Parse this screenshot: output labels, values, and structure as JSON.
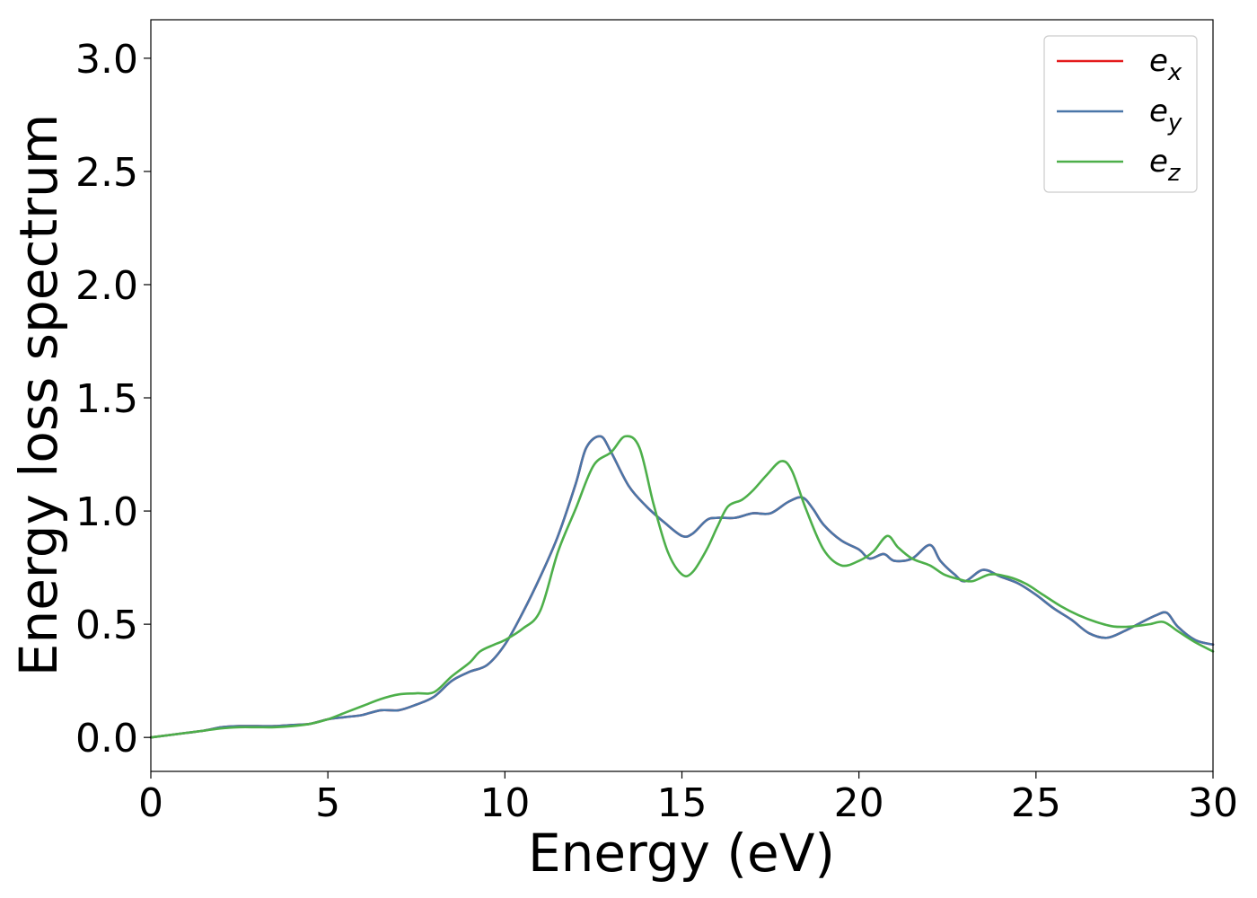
{
  "chart_data": {
    "type": "line",
    "xlabel": "Energy (eV)",
    "ylabel": "Energy loss spectrum",
    "xlim": [
      0,
      30
    ],
    "ylim": [
      -0.15,
      3.17
    ],
    "xticks": [
      0,
      5,
      10,
      15,
      20,
      25,
      30
    ],
    "xtick_labels": [
      "0",
      "5",
      "10",
      "15",
      "20",
      "25",
      "30"
    ],
    "yticks": [
      0.0,
      0.5,
      1.0,
      1.5,
      2.0,
      2.5,
      3.0
    ],
    "ytick_labels": [
      "0.0",
      "0.5",
      "1.0",
      "1.5",
      "2.0",
      "2.5",
      "3.0"
    ],
    "grid": false,
    "legend": {
      "position": "top-right"
    },
    "series": [
      {
        "name_base": "e",
        "name_sub": "x",
        "color": "#e41a1c",
        "x": [
          0,
          1,
          1.5,
          2,
          2.5,
          3,
          3.5,
          4,
          4.5,
          5,
          5.5,
          5.8,
          6,
          6.5,
          7,
          7.5,
          8,
          8.5,
          9,
          9.5,
          10,
          10.5,
          11,
          11.5,
          12,
          12.3,
          12.7,
          13,
          13.5,
          14,
          14.5,
          15,
          15.3,
          15.7,
          16,
          16.5,
          17,
          17.5,
          18,
          18.4,
          18.7,
          19,
          19.5,
          20,
          20.3,
          20.7,
          21,
          21.5,
          22,
          22.3,
          22.7,
          23,
          23.5,
          24,
          24.5,
          25,
          25.5,
          26,
          26.5,
          27,
          27.5,
          28,
          28.4,
          28.7,
          29,
          29.5,
          30
        ],
        "y": [
          0,
          0.02,
          0.03,
          0.045,
          0.05,
          0.05,
          0.05,
          0.055,
          0.06,
          0.08,
          0.09,
          0.095,
          0.1,
          0.12,
          0.12,
          0.145,
          0.18,
          0.25,
          0.29,
          0.32,
          0.41,
          0.55,
          0.71,
          0.89,
          1.12,
          1.28,
          1.33,
          1.26,
          1.11,
          1.02,
          0.95,
          0.89,
          0.9,
          0.96,
          0.97,
          0.97,
          0.99,
          0.99,
          1.04,
          1.06,
          1.01,
          0.94,
          0.87,
          0.83,
          0.79,
          0.81,
          0.78,
          0.79,
          0.85,
          0.78,
          0.72,
          0.69,
          0.74,
          0.71,
          0.68,
          0.63,
          0.57,
          0.52,
          0.46,
          0.44,
          0.47,
          0.51,
          0.54,
          0.55,
          0.49,
          0.43,
          0.41
        ]
      },
      {
        "name_base": "e",
        "name_sub": "y",
        "color": "#4a76a8",
        "x": [
          0,
          1,
          1.5,
          2,
          2.5,
          3,
          3.5,
          4,
          4.5,
          5,
          5.5,
          5.8,
          6,
          6.5,
          7,
          7.5,
          8,
          8.5,
          9,
          9.5,
          10,
          10.5,
          11,
          11.5,
          12,
          12.3,
          12.7,
          13,
          13.5,
          14,
          14.5,
          15,
          15.3,
          15.7,
          16,
          16.5,
          17,
          17.5,
          18,
          18.4,
          18.7,
          19,
          19.5,
          20,
          20.3,
          20.7,
          21,
          21.5,
          22,
          22.3,
          22.7,
          23,
          23.5,
          24,
          24.5,
          25,
          25.5,
          26,
          26.5,
          27,
          27.5,
          28,
          28.4,
          28.7,
          29,
          29.5,
          30
        ],
        "y": [
          0,
          0.02,
          0.03,
          0.045,
          0.05,
          0.05,
          0.05,
          0.055,
          0.06,
          0.08,
          0.09,
          0.095,
          0.1,
          0.12,
          0.12,
          0.145,
          0.18,
          0.25,
          0.29,
          0.32,
          0.41,
          0.55,
          0.71,
          0.89,
          1.12,
          1.28,
          1.33,
          1.26,
          1.11,
          1.02,
          0.95,
          0.89,
          0.9,
          0.96,
          0.97,
          0.97,
          0.99,
          0.99,
          1.04,
          1.06,
          1.01,
          0.94,
          0.87,
          0.83,
          0.79,
          0.81,
          0.78,
          0.79,
          0.85,
          0.78,
          0.72,
          0.69,
          0.74,
          0.71,
          0.68,
          0.63,
          0.57,
          0.52,
          0.46,
          0.44,
          0.47,
          0.51,
          0.54,
          0.55,
          0.49,
          0.43,
          0.41
        ]
      },
      {
        "name_base": "e",
        "name_sub": "z",
        "color": "#4daf4a",
        "x": [
          0,
          1,
          1.5,
          2,
          2.5,
          3,
          3.5,
          4,
          4.5,
          5,
          5.5,
          6,
          6.5,
          7,
          7.5,
          8,
          8.5,
          9,
          9.3,
          9.7,
          10,
          10.5,
          11,
          11.5,
          12,
          12.5,
          13,
          13.4,
          13.8,
          14.2,
          14.6,
          15,
          15.3,
          15.7,
          16,
          16.3,
          16.7,
          17,
          17.4,
          17.8,
          18.1,
          18.5,
          19,
          19.5,
          20,
          20.4,
          20.8,
          21.1,
          21.5,
          22,
          22.4,
          22.8,
          23.2,
          23.7,
          24.2,
          24.7,
          25.2,
          25.7,
          26.2,
          26.7,
          27.2,
          27.7,
          28.2,
          28.6,
          29,
          29.5,
          30
        ],
        "y": [
          0,
          0.02,
          0.03,
          0.04,
          0.045,
          0.045,
          0.045,
          0.05,
          0.06,
          0.08,
          0.11,
          0.14,
          0.17,
          0.19,
          0.195,
          0.2,
          0.27,
          0.33,
          0.38,
          0.41,
          0.43,
          0.48,
          0.56,
          0.82,
          1.01,
          1.2,
          1.26,
          1.33,
          1.28,
          1.03,
          0.82,
          0.72,
          0.73,
          0.83,
          0.93,
          1.02,
          1.05,
          1.09,
          1.16,
          1.22,
          1.18,
          1.01,
          0.83,
          0.76,
          0.78,
          0.82,
          0.89,
          0.84,
          0.79,
          0.76,
          0.72,
          0.7,
          0.69,
          0.72,
          0.71,
          0.68,
          0.63,
          0.58,
          0.54,
          0.51,
          0.49,
          0.49,
          0.5,
          0.51,
          0.47,
          0.42,
          0.38
        ]
      }
    ]
  }
}
